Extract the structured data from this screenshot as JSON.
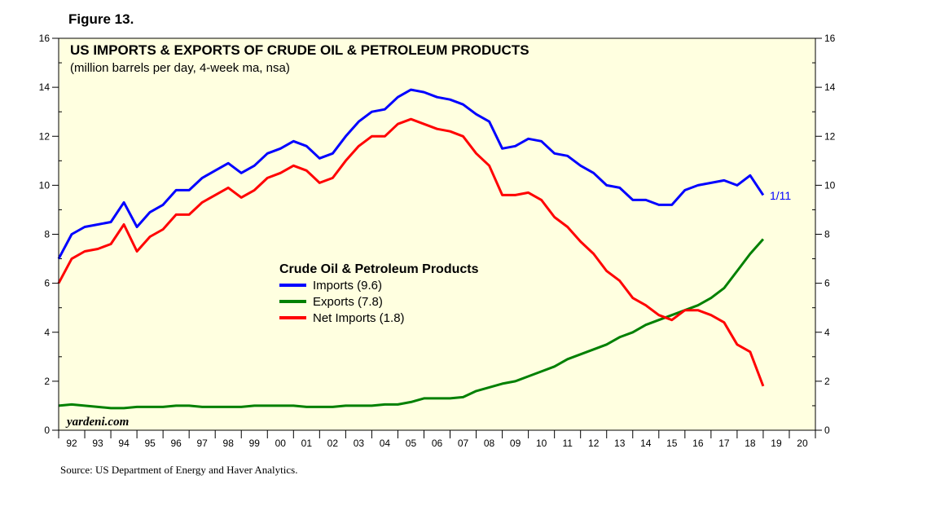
{
  "figure_label": "Figure 13.",
  "source": "Source: US Department of Energy and Haver Analytics.",
  "watermark": "yardeni.com",
  "end_date_label": "1/11",
  "colors": {
    "background": "#FFFFE0",
    "imports": "#0000FF",
    "exports": "#008000",
    "net_imports": "#FF0000",
    "axis": "#000000"
  },
  "chart_data": {
    "type": "line",
    "title": "US IMPORTS & EXPORTS OF CRUDE OIL & PETROLEUM PRODUCTS",
    "subtitle": "(million barrels per day, 4-week ma, nsa)",
    "legend_title": "Crude Oil & Petroleum Products",
    "legend_position": "center-left",
    "ylim": [
      0,
      16
    ],
    "yticks": [
      0,
      2,
      4,
      6,
      8,
      10,
      12,
      14,
      16
    ],
    "xlim": [
      1992,
      2021
    ],
    "xtick_labels": [
      "92",
      "93",
      "94",
      "95",
      "96",
      "97",
      "98",
      "99",
      "00",
      "01",
      "02",
      "03",
      "04",
      "05",
      "06",
      "07",
      "08",
      "09",
      "10",
      "11",
      "12",
      "13",
      "14",
      "15",
      "16",
      "17",
      "18",
      "19",
      "20"
    ],
    "series": [
      {
        "name": "Imports (9.6)",
        "color_key": "imports",
        "x": [
          1992.0,
          1992.5,
          1993.0,
          1993.5,
          1994.0,
          1994.5,
          1995.0,
          1995.5,
          1996.0,
          1996.5,
          1997.0,
          1997.5,
          1998.0,
          1998.5,
          1999.0,
          1999.5,
          2000.0,
          2000.5,
          2001.0,
          2001.5,
          2002.0,
          2002.5,
          2003.0,
          2003.5,
          2004.0,
          2004.5,
          2005.0,
          2005.5,
          2006.0,
          2006.5,
          2007.0,
          2007.5,
          2008.0,
          2008.5,
          2009.0,
          2009.5,
          2010.0,
          2010.5,
          2011.0,
          2011.5,
          2012.0,
          2012.5,
          2013.0,
          2013.5,
          2014.0,
          2014.5,
          2015.0,
          2015.5,
          2016.0,
          2016.5,
          2017.0,
          2017.5,
          2018.0,
          2018.5,
          2019.0
        ],
        "values": [
          7.0,
          8.0,
          8.3,
          8.4,
          8.5,
          9.3,
          8.3,
          8.9,
          9.2,
          9.8,
          9.8,
          10.3,
          10.6,
          10.9,
          10.5,
          10.8,
          11.3,
          11.5,
          11.8,
          11.6,
          11.1,
          11.3,
          12.0,
          12.6,
          13.0,
          13.1,
          13.6,
          13.9,
          13.8,
          13.6,
          13.5,
          13.3,
          12.9,
          12.6,
          11.5,
          11.6,
          11.9,
          11.8,
          11.3,
          11.2,
          10.8,
          10.5,
          10.0,
          9.9,
          9.4,
          9.4,
          9.2,
          9.2,
          9.8,
          10.0,
          10.1,
          10.2,
          10.0,
          10.4,
          9.6
        ]
      },
      {
        "name": "Exports (7.8)",
        "color_key": "exports",
        "x": [
          1992.0,
          1992.5,
          1993.0,
          1993.5,
          1994.0,
          1994.5,
          1995.0,
          1995.5,
          1996.0,
          1996.5,
          1997.0,
          1997.5,
          1998.0,
          1998.5,
          1999.0,
          1999.5,
          2000.0,
          2000.5,
          2001.0,
          2001.5,
          2002.0,
          2002.5,
          2003.0,
          2003.5,
          2004.0,
          2004.5,
          2005.0,
          2005.5,
          2006.0,
          2006.5,
          2007.0,
          2007.5,
          2008.0,
          2008.5,
          2009.0,
          2009.5,
          2010.0,
          2010.5,
          2011.0,
          2011.5,
          2012.0,
          2012.5,
          2013.0,
          2013.5,
          2014.0,
          2014.5,
          2015.0,
          2015.5,
          2016.0,
          2016.5,
          2017.0,
          2017.5,
          2018.0,
          2018.5,
          2019.0
        ],
        "values": [
          1.0,
          1.05,
          1.0,
          0.95,
          0.9,
          0.9,
          0.95,
          0.95,
          0.95,
          1.0,
          1.0,
          0.95,
          0.95,
          0.95,
          0.95,
          1.0,
          1.0,
          1.0,
          1.0,
          0.95,
          0.95,
          0.95,
          1.0,
          1.0,
          1.0,
          1.05,
          1.05,
          1.15,
          1.3,
          1.3,
          1.3,
          1.35,
          1.6,
          1.75,
          1.9,
          2.0,
          2.2,
          2.4,
          2.6,
          2.9,
          3.1,
          3.3,
          3.5,
          3.8,
          4.0,
          4.3,
          4.5,
          4.7,
          4.9,
          5.1,
          5.4,
          5.8,
          6.5,
          7.2,
          7.8
        ]
      },
      {
        "name": "Net Imports (1.8)",
        "color_key": "net_imports",
        "x": [
          1992.0,
          1992.5,
          1993.0,
          1993.5,
          1994.0,
          1994.5,
          1995.0,
          1995.5,
          1996.0,
          1996.5,
          1997.0,
          1997.5,
          1998.0,
          1998.5,
          1999.0,
          1999.5,
          2000.0,
          2000.5,
          2001.0,
          2001.5,
          2002.0,
          2002.5,
          2003.0,
          2003.5,
          2004.0,
          2004.5,
          2005.0,
          2005.5,
          2006.0,
          2006.5,
          2007.0,
          2007.5,
          2008.0,
          2008.5,
          2009.0,
          2009.5,
          2010.0,
          2010.5,
          2011.0,
          2011.5,
          2012.0,
          2012.5,
          2013.0,
          2013.5,
          2014.0,
          2014.5,
          2015.0,
          2015.5,
          2016.0,
          2016.5,
          2017.0,
          2017.5,
          2018.0,
          2018.5,
          2019.0
        ],
        "values": [
          6.0,
          7.0,
          7.3,
          7.4,
          7.6,
          8.4,
          7.3,
          7.9,
          8.2,
          8.8,
          8.8,
          9.3,
          9.6,
          9.9,
          9.5,
          9.8,
          10.3,
          10.5,
          10.8,
          10.6,
          10.1,
          10.3,
          11.0,
          11.6,
          12.0,
          12.0,
          12.5,
          12.7,
          12.5,
          12.3,
          12.2,
          12.0,
          11.3,
          10.8,
          9.6,
          9.6,
          9.7,
          9.4,
          8.7,
          8.3,
          7.7,
          7.2,
          6.5,
          6.1,
          5.4,
          5.1,
          4.7,
          4.5,
          4.9,
          4.9,
          4.7,
          4.4,
          3.5,
          3.2,
          1.8
        ]
      }
    ]
  }
}
